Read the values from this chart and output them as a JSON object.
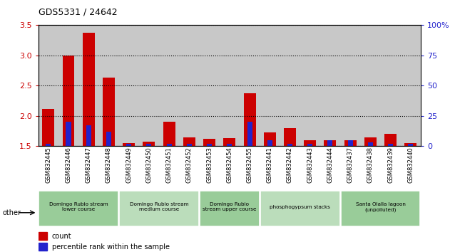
{
  "title": "GDS5331 / 24642",
  "samples": [
    "GSM832445",
    "GSM832446",
    "GSM832447",
    "GSM832448",
    "GSM832449",
    "GSM832450",
    "GSM832451",
    "GSM832452",
    "GSM832453",
    "GSM832454",
    "GSM832455",
    "GSM832441",
    "GSM832442",
    "GSM832443",
    "GSM832444",
    "GSM832437",
    "GSM832438",
    "GSM832439",
    "GSM832440"
  ],
  "count_values": [
    2.11,
    3.0,
    3.38,
    2.63,
    1.55,
    1.57,
    1.9,
    1.65,
    1.62,
    1.63,
    2.37,
    1.73,
    1.8,
    1.6,
    1.6,
    1.6,
    1.65,
    1.7,
    1.55
  ],
  "percentile_values": [
    2,
    20,
    17,
    12,
    2,
    2,
    2,
    2,
    2,
    2,
    20,
    5,
    2,
    2,
    5,
    5,
    3,
    2,
    2
  ],
  "count_base": 1.5,
  "ylim_left": [
    1.5,
    3.5
  ],
  "ylim_right": [
    0,
    100
  ],
  "yticks_left": [
    1.5,
    2.0,
    2.5,
    3.0,
    3.5
  ],
  "yticks_right": [
    0,
    25,
    50,
    75,
    100
  ],
  "bar_color": "#cc0000",
  "percentile_color": "#2222cc",
  "col_bg_color": "#c8c8c8",
  "plot_bg": "#ffffff",
  "grid_color": "#000000",
  "groups": [
    {
      "label": "Domingo Rubio stream\nlower course",
      "start": 0,
      "end": 3,
      "color": "#99cc99"
    },
    {
      "label": "Domingo Rubio stream\nmedium course",
      "start": 4,
      "end": 7,
      "color": "#bbddbb"
    },
    {
      "label": "Domingo Rubio\nstream upper course",
      "start": 8,
      "end": 10,
      "color": "#99cc99"
    },
    {
      "label": "phosphogypsum stacks",
      "start": 11,
      "end": 14,
      "color": "#bbddbb"
    },
    {
      "label": "Santa Olalla lagoon\n(unpolluted)",
      "start": 15,
      "end": 18,
      "color": "#99cc99"
    }
  ],
  "other_label": "other",
  "legend_count": "count",
  "legend_pct": "percentile rank within the sample",
  "bar_width": 0.6,
  "pct_bar_width": 0.25
}
